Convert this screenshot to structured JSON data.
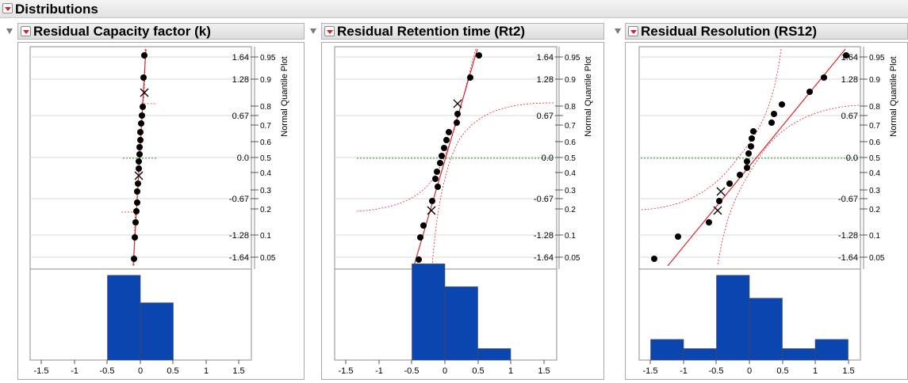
{
  "header": {
    "title": "Distributions"
  },
  "panels": [
    {
      "title": "Residual Capacity factor (k)",
      "histogram": [
        0.37,
        0.25
      ]
    },
    {
      "title": "Residual Retention time (Rt2)",
      "histogram": [
        0.42,
        0.32,
        0.05
      ]
    },
    {
      "title": "Residual Resolution (RS12)",
      "histogram": [
        0.09,
        0.05,
        0.37,
        0.27,
        0.05,
        0.09
      ]
    }
  ],
  "quantile_axis": {
    "label": "Normal Quantile Plot",
    "z_labels": [
      "1.64",
      "1.28",
      "0.67",
      "0.0",
      "-0.67",
      "-1.28",
      "-1.64"
    ],
    "p_labels": [
      "0.95",
      "0.9",
      "0.8",
      "0.7",
      "0.6",
      "0.5",
      "0.4",
      "0.3",
      "0.2",
      "0.1",
      "0.05"
    ]
  },
  "x_axis": {
    "tick_labels": [
      "-1.5",
      "-1",
      "-0.5",
      "0",
      "0.5",
      "1",
      "1.5"
    ]
  },
  "colors": {
    "histogram_fill": "#0b46b0",
    "fit_line": "#d8262c",
    "reference_line": "#2da32d",
    "point": "#000000"
  }
}
